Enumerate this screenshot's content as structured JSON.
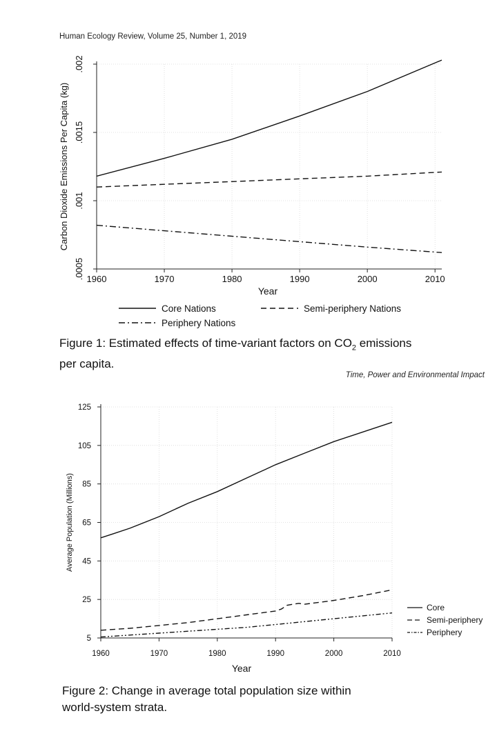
{
  "page": {
    "header_top": "Human Ecology Review, Volume 25, Number 1, 2019",
    "header_right": "Time, Power and Environmental Impact",
    "caption1_main": "Figure 1: Estimated effects of time-variant factors on CO",
    "caption1_sub": "2",
    "caption1_tail": " emissions",
    "caption1_line2": "per capita.",
    "caption2_line1": "Figure 2: Change in average total population size within",
    "caption2_line2": "world-system strata."
  },
  "chart_data": [
    {
      "type": "line",
      "title": "",
      "xlabel": "Year",
      "ylabel": "Carbon Dioxide Emissions Per Capita (kg)",
      "xlim": [
        1960,
        2011
      ],
      "ylim": [
        0.0005,
        0.002
      ],
      "xticks": [
        1960,
        1970,
        1980,
        1990,
        2000,
        2010
      ],
      "yticks": [
        0.0005,
        0.001,
        0.0015,
        0.002
      ],
      "ytick_labels": [
        ".0005",
        ".001",
        ".0015",
        ".002"
      ],
      "grid": true,
      "legend_position": "bottom",
      "series": [
        {
          "name": "Core Nations",
          "style": "solid",
          "x": [
            1960,
            1970,
            1980,
            1990,
            2000,
            2011
          ],
          "y": [
            0.00118,
            0.00131,
            0.00145,
            0.00162,
            0.0018,
            0.00203
          ]
        },
        {
          "name": "Semi-periphery Nations",
          "style": "dashed",
          "x": [
            1960,
            1970,
            1980,
            1990,
            2000,
            2011
          ],
          "y": [
            0.0011,
            0.00112,
            0.00114,
            0.00116,
            0.00118,
            0.00121
          ]
        },
        {
          "name": "Periphery Nations",
          "style": "dashdot",
          "x": [
            1960,
            1970,
            1980,
            1990,
            2000,
            2011
          ],
          "y": [
            0.00082,
            0.00078,
            0.00074,
            0.0007,
            0.00066,
            0.00062
          ]
        }
      ]
    },
    {
      "type": "line",
      "title": "",
      "xlabel": "Year",
      "ylabel": "Average Population (Millions)",
      "xlim": [
        1960,
        2010
      ],
      "ylim": [
        5,
        125
      ],
      "xticks": [
        1960,
        1970,
        1980,
        1990,
        2000,
        2010
      ],
      "yticks": [
        5,
        25,
        45,
        65,
        85,
        105,
        125
      ],
      "grid": true,
      "legend_position": "right",
      "series": [
        {
          "name": "Core",
          "style": "solid",
          "x": [
            1960,
            1962,
            1965,
            1970,
            1975,
            1980,
            1985,
            1990,
            1995,
            2000,
            2005,
            2010
          ],
          "y": [
            57,
            59,
            62,
            68,
            75,
            81,
            88,
            95,
            101,
            107,
            112,
            117
          ]
        },
        {
          "name": "Semi-periphery",
          "style": "dashed",
          "x": [
            1960,
            1965,
            1970,
            1975,
            1980,
            1985,
            1990,
            1991,
            1992,
            1994,
            1995,
            2000,
            2005,
            2010
          ],
          "y": [
            9,
            10,
            11.5,
            13,
            15,
            17,
            19,
            20,
            22,
            23,
            22.5,
            24.5,
            27,
            30
          ]
        },
        {
          "name": "Periphery",
          "style": "dashdotdot",
          "x": [
            1960,
            1965,
            1970,
            1975,
            1980,
            1985,
            1990,
            1995,
            2000,
            2005,
            2010
          ],
          "y": [
            5.5,
            6.5,
            7.5,
            8.5,
            9.5,
            10.5,
            12,
            13.5,
            15,
            16.5,
            18
          ]
        }
      ]
    }
  ]
}
